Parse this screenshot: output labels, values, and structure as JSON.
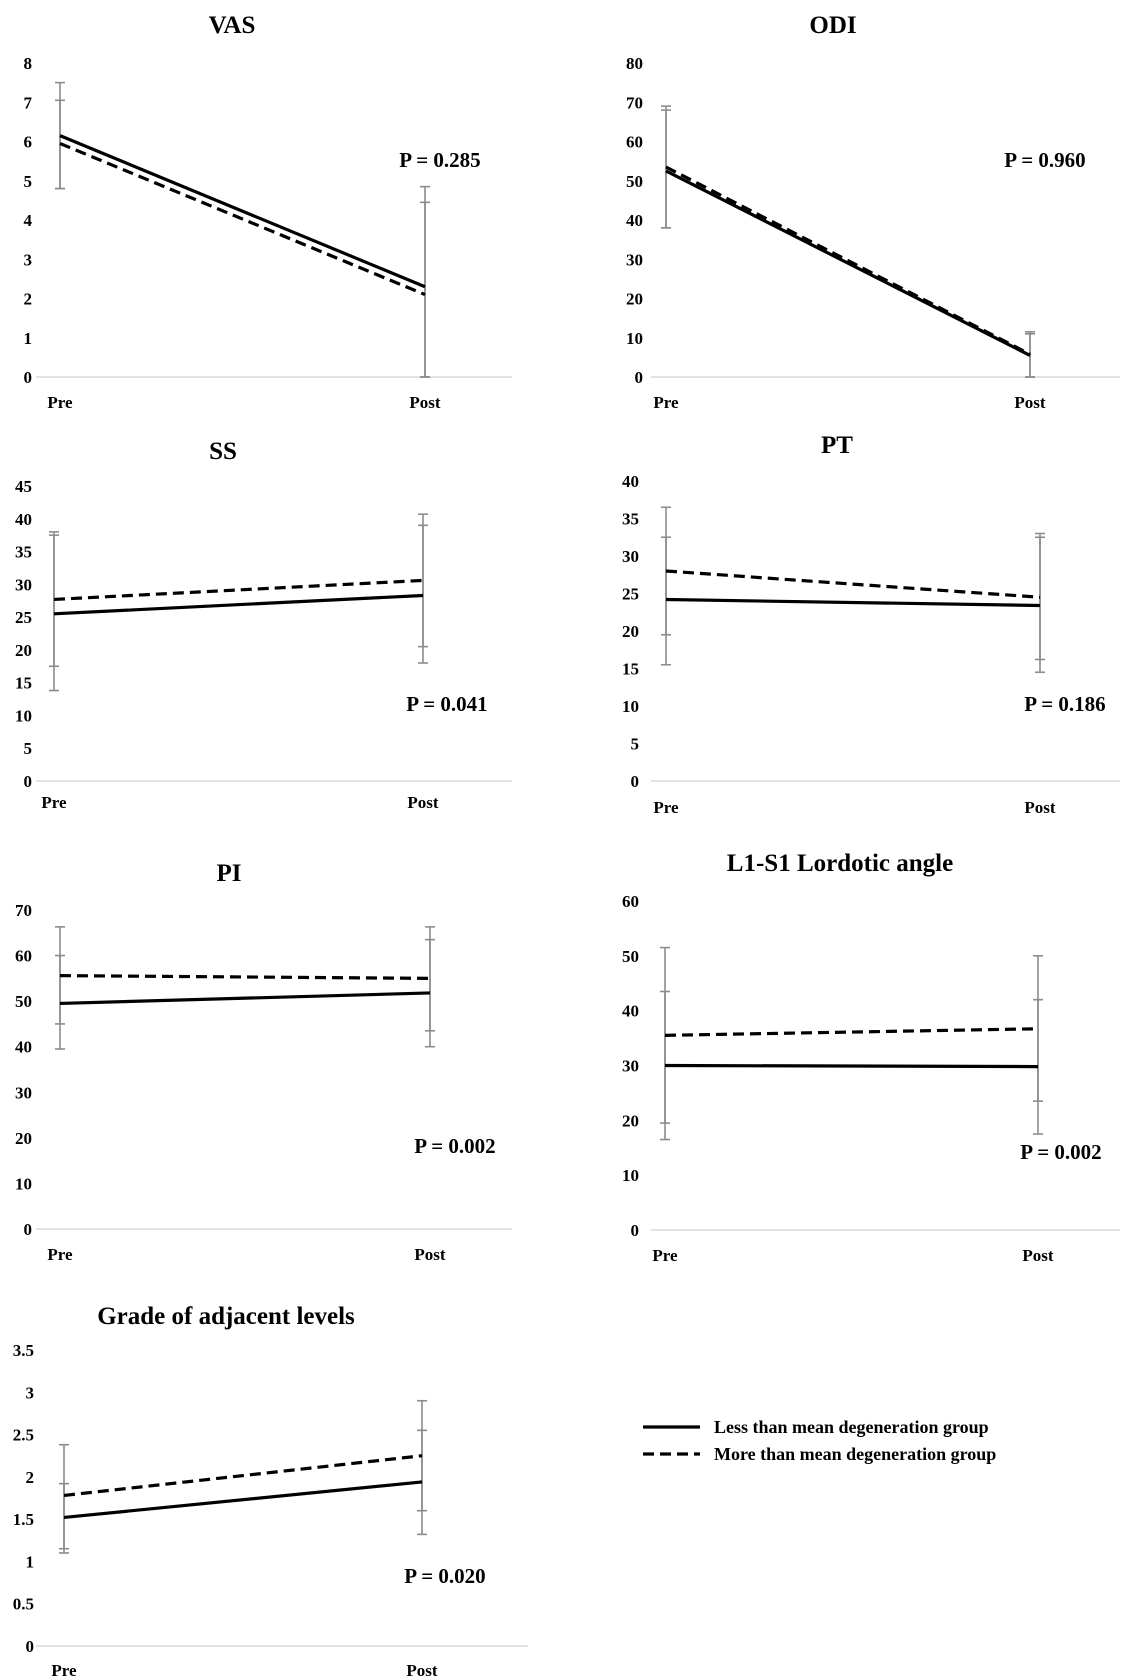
{
  "legend": [
    {
      "name": "Less than mean degeneration group",
      "style": "solid"
    },
    {
      "name": "More than mean degeneration group",
      "style": "dashed"
    }
  ],
  "chart_data": [
    {
      "id": "vas",
      "type": "line",
      "title": "VAS",
      "categories": [
        "Pre",
        "Post"
      ],
      "ylim": [
        0,
        8
      ],
      "ytick_step": 1,
      "ytick_labels": [
        "0",
        "1",
        "2",
        "3",
        "4",
        "5",
        "6",
        "7",
        "8"
      ],
      "annotation": "P = 0.285",
      "grid": false,
      "series": [
        {
          "name": "Less than mean degeneration group",
          "style": "solid",
          "values": [
            6.15,
            2.3
          ],
          "err_low": [
            4.8,
            0.0
          ],
          "err_high": [
            7.5,
            4.85
          ]
        },
        {
          "name": "More than mean degeneration group",
          "style": "dashed",
          "values": [
            5.95,
            2.1
          ],
          "err_low": [
            4.8,
            0.0
          ],
          "err_high": [
            7.05,
            4.45
          ]
        }
      ]
    },
    {
      "id": "odi",
      "type": "line",
      "title": "ODI",
      "categories": [
        "Pre",
        "Post"
      ],
      "ylim": [
        0,
        80
      ],
      "ytick_step": 10,
      "ytick_labels": [
        "0",
        "10",
        "20",
        "30",
        "40",
        "50",
        "60",
        "70",
        "80"
      ],
      "annotation": "P = 0.960",
      "grid": false,
      "series": [
        {
          "name": "Less than mean degeneration group",
          "style": "solid",
          "values": [
            52.5,
            5.5
          ],
          "err_low": [
            38,
            0
          ],
          "err_high": [
            69,
            11.5
          ]
        },
        {
          "name": "More than mean degeneration group",
          "style": "dashed",
          "values": [
            53.5,
            5.8
          ],
          "err_low": [
            38,
            0
          ],
          "err_high": [
            68,
            11
          ]
        }
      ]
    },
    {
      "id": "ss",
      "type": "line",
      "title": "SS",
      "categories": [
        "Pre",
        "Post"
      ],
      "ylim": [
        0,
        45
      ],
      "ytick_step": 5,
      "ytick_labels": [
        "0",
        "5",
        "10",
        "15",
        "20",
        "25",
        "30",
        "35",
        "40",
        "45"
      ],
      "annotation": "P = 0.041",
      "grid": false,
      "series": [
        {
          "name": "Less than mean degeneration group",
          "style": "solid",
          "values": [
            25.5,
            28.3
          ],
          "err_low": [
            13.8,
            18
          ],
          "err_high": [
            38,
            39
          ]
        },
        {
          "name": "More than mean degeneration group",
          "style": "dashed",
          "values": [
            27.7,
            30.6
          ],
          "err_low": [
            17.5,
            20.5
          ],
          "err_high": [
            37.5,
            40.7
          ]
        }
      ]
    },
    {
      "id": "pt",
      "type": "line",
      "title": "PT",
      "categories": [
        "Pre",
        "Post"
      ],
      "ylim": [
        0,
        40
      ],
      "ytick_step": 5,
      "ytick_labels": [
        "0",
        "5",
        "10",
        "15",
        "20",
        "25",
        "30",
        "35",
        "40"
      ],
      "annotation": "P = 0.186",
      "grid": false,
      "series": [
        {
          "name": "Less than mean degeneration group",
          "style": "solid",
          "values": [
            24.2,
            23.4
          ],
          "err_low": [
            15.5,
            14.5
          ],
          "err_high": [
            32.5,
            32.5
          ]
        },
        {
          "name": "More than mean degeneration group",
          "style": "dashed",
          "values": [
            28,
            24.5
          ],
          "err_low": [
            19.5,
            16.2
          ],
          "err_high": [
            36.5,
            33
          ]
        }
      ]
    },
    {
      "id": "pi",
      "type": "line",
      "title": "PI",
      "categories": [
        "Pre",
        "Post"
      ],
      "ylim": [
        0,
        70
      ],
      "ytick_step": 10,
      "ytick_labels": [
        "0",
        "10",
        "20",
        "30",
        "40",
        "50",
        "60",
        "70"
      ],
      "annotation": "P = 0.002",
      "grid": false,
      "series": [
        {
          "name": "Less than mean degeneration group",
          "style": "solid",
          "values": [
            49.5,
            51.8
          ],
          "err_low": [
            39.5,
            40
          ],
          "err_high": [
            60,
            63.5
          ]
        },
        {
          "name": "More than mean degeneration group",
          "style": "dashed",
          "values": [
            55.6,
            55
          ],
          "err_low": [
            45,
            43.5
          ],
          "err_high": [
            66.3,
            66.3
          ]
        }
      ]
    },
    {
      "id": "lordotic",
      "type": "line",
      "title": "L1-S1 Lordotic angle",
      "categories": [
        "Pre",
        "Post"
      ],
      "ylim": [
        0,
        60
      ],
      "ytick_step": 10,
      "ytick_labels": [
        "0",
        "10",
        "20",
        "30",
        "40",
        "50",
        "60"
      ],
      "annotation": "P = 0.002",
      "grid": false,
      "series": [
        {
          "name": "Less than mean degeneration group",
          "style": "solid",
          "values": [
            30,
            29.8
          ],
          "err_low": [
            16.5,
            17.5
          ],
          "err_high": [
            43.5,
            42
          ]
        },
        {
          "name": "More than mean degeneration group",
          "style": "dashed",
          "values": [
            35.5,
            36.7
          ],
          "err_low": [
            19.5,
            23.5
          ],
          "err_high": [
            51.5,
            50
          ]
        }
      ]
    },
    {
      "id": "grade",
      "type": "line",
      "title": "Grade of adjacent levels",
      "categories": [
        "Pre",
        "Post"
      ],
      "ylim": [
        0,
        3.5
      ],
      "ytick_step": 0.5,
      "ytick_labels": [
        "0",
        "0.5",
        "1",
        "1.5",
        "2",
        "2.5",
        "3",
        "3.5"
      ],
      "annotation": "P = 0.020",
      "grid": false,
      "series": [
        {
          "name": "Less than mean degeneration group",
          "style": "solid",
          "values": [
            1.52,
            1.94
          ],
          "err_low": [
            1.1,
            1.32
          ],
          "err_high": [
            1.92,
            2.55
          ]
        },
        {
          "name": "More than mean degeneration group",
          "style": "dashed",
          "values": [
            1.78,
            2.25
          ],
          "err_low": [
            1.15,
            1.6
          ],
          "err_high": [
            2.38,
            2.9
          ]
        }
      ]
    }
  ]
}
